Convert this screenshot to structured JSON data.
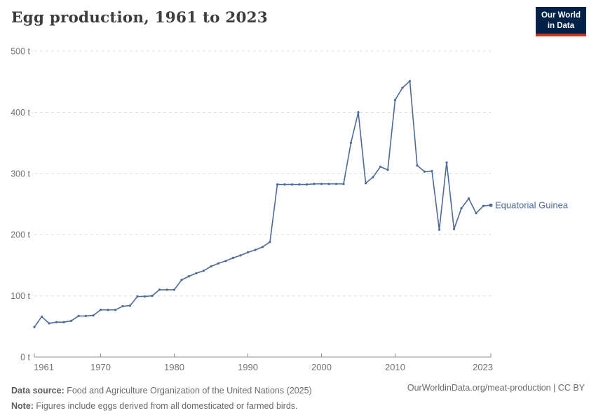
{
  "header": {
    "title": "Egg production, 1961 to 2023",
    "logo_line1": "Our World",
    "logo_line2": "in Data"
  },
  "colors": {
    "series": "#4c6a9c",
    "logo_navy": "#002147",
    "logo_red": "#c9341f"
  },
  "chart_data": {
    "type": "line",
    "title": "Egg production, 1961 to 2023",
    "unit": "t",
    "xlim": [
      1961,
      2023
    ],
    "ylim": [
      0,
      500
    ],
    "y_ticks": [
      0,
      100,
      200,
      300,
      400,
      500
    ],
    "y_tick_suffix": " t",
    "x_ticks": [
      1961,
      1970,
      1980,
      1990,
      2000,
      2010,
      2023
    ],
    "grid": "horizontal-dashed",
    "legend_position": "end-of-line-label",
    "years": [
      1961,
      1962,
      1963,
      1964,
      1965,
      1966,
      1967,
      1968,
      1969,
      1970,
      1971,
      1972,
      1973,
      1974,
      1975,
      1976,
      1977,
      1978,
      1979,
      1980,
      1981,
      1982,
      1983,
      1984,
      1985,
      1986,
      1987,
      1988,
      1989,
      1990,
      1991,
      1992,
      1993,
      1994,
      1995,
      1996,
      1997,
      1998,
      1999,
      2000,
      2001,
      2002,
      2003,
      2004,
      2005,
      2006,
      2007,
      2008,
      2009,
      2010,
      2011,
      2012,
      2013,
      2014,
      2015,
      2016,
      2017,
      2018,
      2019,
      2020,
      2021,
      2022,
      2023
    ],
    "series": [
      {
        "name": "Equatorial Guinea",
        "color": "#4c6a9c",
        "values": [
          49,
          66,
          55,
          57,
          57,
          59,
          67,
          67,
          68,
          77,
          77,
          77,
          83,
          84,
          99,
          99,
          100,
          110,
          110,
          110,
          126,
          132,
          137,
          141,
          148,
          153,
          157,
          162,
          166,
          171,
          175,
          180,
          188,
          282,
          282,
          282,
          282,
          282,
          283,
          283,
          283,
          283,
          283,
          350,
          400,
          284,
          294,
          311,
          306,
          420,
          440,
          451,
          313,
          303,
          304,
          208,
          318,
          209,
          243,
          259,
          235,
          247,
          248
        ]
      }
    ]
  },
  "footer": {
    "source_label": "Data source:",
    "source_text": " Food and Agriculture Organization of the United Nations (2025)",
    "note_label": "Note:",
    "note_text": " Figures include eggs derived from all domesticated or farmed birds.",
    "credit": "OurWorldinData.org/meat-production | CC BY"
  }
}
